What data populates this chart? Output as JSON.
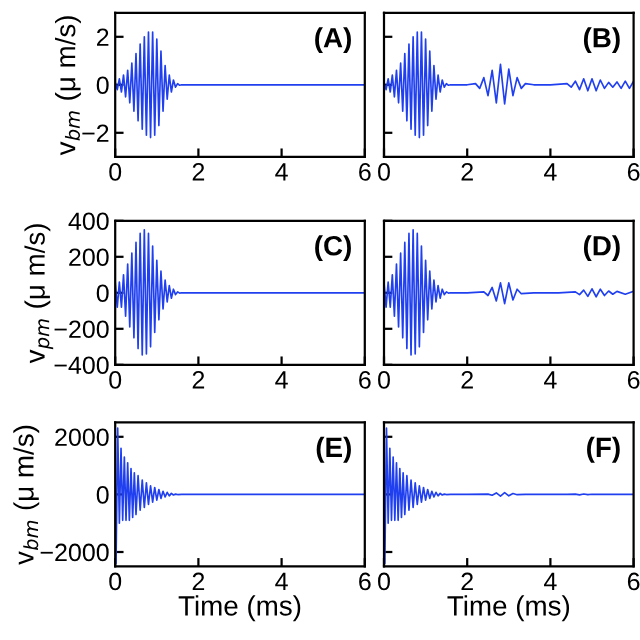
{
  "chart_data": [
    {
      "type": "line",
      "ylabel": "v$_{bm}$ (μ m/s)",
      "annotations": [
        "(A)"
      ],
      "xlim": [
        0,
        6
      ],
      "xticks": [
        0,
        2,
        4,
        6
      ],
      "ylim": [
        -3,
        3
      ],
      "yticks": [
        -2,
        0,
        2
      ],
      "x": [
        0,
        0.05,
        0.1,
        0.15,
        0.2,
        0.25,
        0.3,
        0.35,
        0.4,
        0.45,
        0.5,
        0.55,
        0.6,
        0.65,
        0.7,
        0.75,
        0.8,
        0.85,
        0.9,
        0.95,
        1.0,
        1.05,
        1.1,
        1.15,
        1.2,
        1.25,
        1.3,
        1.35,
        1.4,
        1.45,
        1.5,
        1.55,
        1.6,
        2,
        4,
        6
      ],
      "series": [
        {
          "color": "#2040f0",
          "values": [
            0.1,
            -0.2,
            0.25,
            -0.3,
            0.4,
            -0.5,
            0.6,
            -0.75,
            0.9,
            -1.1,
            1.3,
            -1.5,
            1.7,
            -1.85,
            2.0,
            -2.1,
            2.2,
            -2.2,
            2.2,
            -2.1,
            1.9,
            -1.7,
            1.4,
            -1.1,
            0.8,
            -0.6,
            0.4,
            -0.3,
            0.2,
            -0.1,
            0.05,
            -0.02,
            0,
            0,
            0,
            0
          ]
        }
      ]
    },
    {
      "type": "line",
      "annotations": [
        "(B)"
      ],
      "tick_labels": "x",
      "xlim": [
        0,
        6
      ],
      "xticks": [
        0,
        2,
        4,
        6
      ],
      "ylim": [
        -3,
        3
      ],
      "yticks": [
        -2,
        0,
        2
      ],
      "x": [
        0,
        0.05,
        0.1,
        0.15,
        0.2,
        0.25,
        0.3,
        0.35,
        0.4,
        0.45,
        0.5,
        0.55,
        0.6,
        0.65,
        0.7,
        0.75,
        0.8,
        0.85,
        0.9,
        0.95,
        1.0,
        1.05,
        1.1,
        1.15,
        1.2,
        1.25,
        1.3,
        1.35,
        1.4,
        1.45,
        1.5,
        1.55,
        1.6,
        2.0,
        2.2,
        2.3,
        2.4,
        2.5,
        2.6,
        2.7,
        2.8,
        2.9,
        3.0,
        3.1,
        3.2,
        3.3,
        3.4,
        3.6,
        4.0,
        4.4,
        4.5,
        4.6,
        4.7,
        4.8,
        4.9,
        5.0,
        5.1,
        5.2,
        5.3,
        5.4,
        5.5,
        5.6,
        5.7,
        5.8,
        5.9,
        6.0
      ],
      "series": [
        {
          "color": "#2040f0",
          "values": [
            0.1,
            -0.2,
            0.25,
            -0.3,
            0.4,
            -0.5,
            0.6,
            -0.75,
            0.9,
            -1.1,
            1.3,
            -1.5,
            1.7,
            -1.85,
            2.0,
            -2.1,
            2.2,
            -2.2,
            2.2,
            -2.1,
            1.9,
            -1.7,
            1.4,
            -1.1,
            0.8,
            -0.6,
            0.4,
            -0.3,
            0.2,
            -0.1,
            0.05,
            -0.02,
            0,
            0,
            0.05,
            -0.15,
            0.3,
            -0.45,
            0.6,
            -0.75,
            0.85,
            -0.8,
            0.65,
            -0.45,
            0.3,
            -0.15,
            0.05,
            0,
            0,
            0.05,
            -0.1,
            0.15,
            -0.2,
            0.25,
            -0.25,
            0.25,
            -0.25,
            0.2,
            -0.15,
            0.1,
            -0.1,
            0.12,
            -0.15,
            0.15,
            -0.15,
            0.15
          ]
        }
      ]
    },
    {
      "type": "line",
      "ylabel": "v$_{pm}$ (μ m/s)",
      "annotations": [
        "(C)"
      ],
      "xlim": [
        0,
        6
      ],
      "xticks": [
        0,
        2,
        4,
        6
      ],
      "ylim": [
        -400,
        400
      ],
      "yticks": [
        -400,
        -200,
        0,
        200,
        400
      ],
      "x": [
        0,
        0.05,
        0.1,
        0.15,
        0.2,
        0.25,
        0.3,
        0.35,
        0.4,
        0.45,
        0.5,
        0.55,
        0.6,
        0.65,
        0.7,
        0.75,
        0.8,
        0.85,
        0.9,
        0.95,
        1.0,
        1.05,
        1.1,
        1.15,
        1.2,
        1.25,
        1.3,
        1.35,
        1.4,
        1.45,
        1.5,
        1.55,
        1.6,
        2,
        4,
        6
      ],
      "series": [
        {
          "color": "#2040f0",
          "values": [
            60,
            -80,
            60,
            -80,
            100,
            -130,
            160,
            -190,
            220,
            -250,
            280,
            -310,
            330,
            -345,
            350,
            -340,
            330,
            -300,
            260,
            -220,
            180,
            -150,
            120,
            -90,
            70,
            -50,
            40,
            -30,
            20,
            -10,
            5,
            -2,
            0,
            0,
            0,
            0
          ]
        }
      ]
    },
    {
      "type": "line",
      "annotations": [
        "(D)"
      ],
      "tick_labels": "x",
      "xlim": [
        0,
        6
      ],
      "xticks": [
        0,
        2,
        4,
        6
      ],
      "ylim": [
        -400,
        400
      ],
      "yticks": [
        -400,
        -200,
        0,
        200,
        400
      ],
      "x": [
        0,
        0.05,
        0.1,
        0.15,
        0.2,
        0.25,
        0.3,
        0.35,
        0.4,
        0.45,
        0.5,
        0.55,
        0.6,
        0.65,
        0.7,
        0.75,
        0.8,
        0.85,
        0.9,
        0.95,
        1.0,
        1.05,
        1.1,
        1.15,
        1.2,
        1.25,
        1.3,
        1.35,
        1.4,
        1.45,
        1.5,
        1.55,
        1.6,
        2.0,
        2.4,
        2.5,
        2.6,
        2.7,
        2.8,
        2.9,
        3.0,
        3.1,
        3.2,
        3.3,
        3.6,
        4.2,
        4.6,
        4.7,
        4.8,
        4.9,
        5.0,
        5.1,
        5.2,
        5.3,
        5.4,
        5.5,
        5.6,
        5.8,
        6.0
      ],
      "series": [
        {
          "color": "#2040f0",
          "values": [
            60,
            -80,
            60,
            -80,
            100,
            -130,
            160,
            -190,
            220,
            -250,
            280,
            -310,
            330,
            -345,
            350,
            -340,
            330,
            -300,
            260,
            -220,
            180,
            -150,
            120,
            -90,
            70,
            -50,
            40,
            -30,
            20,
            -10,
            5,
            -2,
            0,
            0,
            5,
            -15,
            30,
            -45,
            55,
            -60,
            55,
            -40,
            20,
            -5,
            0,
            0,
            5,
            -10,
            15,
            -20,
            22,
            -22,
            20,
            -15,
            10,
            -8,
            8,
            -8,
            8
          ]
        }
      ]
    },
    {
      "type": "line",
      "ylabel": "v$_{bm}$ (μ m/s)",
      "xlabel": "Time (ms)",
      "annotations": [
        "(E)"
      ],
      "xlim": [
        0,
        6
      ],
      "xticks": [
        0,
        2,
        4,
        6
      ],
      "ylim": [
        -2500,
        2500
      ],
      "yticks": [
        -2000,
        0,
        2000
      ],
      "x": [
        0,
        0.02,
        0.06,
        0.1,
        0.14,
        0.18,
        0.22,
        0.26,
        0.3,
        0.34,
        0.38,
        0.42,
        0.46,
        0.5,
        0.55,
        0.6,
        0.65,
        0.7,
        0.75,
        0.8,
        0.85,
        0.9,
        0.95,
        1.0,
        1.05,
        1.1,
        1.15,
        1.2,
        1.25,
        1.3,
        1.35,
        1.4,
        1.45,
        1.5,
        1.6,
        2,
        4,
        6
      ],
      "series": [
        {
          "color": "#2040f0",
          "values": [
            0,
            -2400,
            2300,
            -1000,
            1600,
            -900,
            1300,
            -900,
            1100,
            -900,
            900,
            -800,
            750,
            -700,
            650,
            -550,
            500,
            -450,
            400,
            -350,
            300,
            -270,
            240,
            -200,
            170,
            -140,
            110,
            -90,
            70,
            -50,
            35,
            -20,
            10,
            -5,
            0,
            0,
            0,
            0
          ]
        }
      ]
    },
    {
      "type": "line",
      "xlabel": "Time (ms)",
      "annotations": [
        "(F)"
      ],
      "tick_labels": "x",
      "xlim": [
        0,
        6
      ],
      "xticks": [
        0,
        2,
        4,
        6
      ],
      "ylim": [
        -2500,
        2500
      ],
      "yticks": [
        -2000,
        0,
        2000
      ],
      "x": [
        0,
        0.02,
        0.06,
        0.1,
        0.14,
        0.18,
        0.22,
        0.26,
        0.3,
        0.34,
        0.38,
        0.42,
        0.46,
        0.5,
        0.55,
        0.6,
        0.65,
        0.7,
        0.75,
        0.8,
        0.85,
        0.9,
        0.95,
        1.0,
        1.05,
        1.1,
        1.15,
        1.2,
        1.25,
        1.3,
        1.35,
        1.4,
        1.45,
        1.5,
        1.6,
        2.0,
        2.5,
        2.6,
        2.7,
        2.8,
        2.9,
        3.0,
        3.1,
        3.2,
        3.4,
        4.4,
        4.6,
        4.7,
        4.8,
        4.9,
        5.0,
        5.2,
        6.0
      ],
      "series": [
        {
          "color": "#2040f0",
          "values": [
            0,
            -2400,
            2300,
            -1000,
            1600,
            -900,
            1300,
            -900,
            1100,
            -900,
            900,
            -800,
            750,
            -700,
            650,
            -550,
            500,
            -450,
            400,
            -350,
            300,
            -270,
            240,
            -200,
            170,
            -140,
            110,
            -90,
            70,
            -50,
            35,
            -20,
            10,
            -5,
            0,
            0,
            10,
            -30,
            50,
            -60,
            60,
            -50,
            30,
            -10,
            0,
            0,
            10,
            -15,
            15,
            -10,
            5,
            0,
            0
          ]
        }
      ]
    }
  ]
}
